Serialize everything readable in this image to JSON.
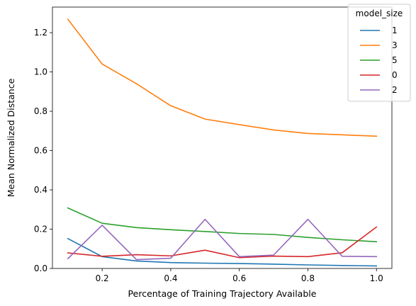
{
  "chart_data": {
    "type": "line",
    "xlabel": "Percentage of Training Trajectory Available",
    "ylabel": "Mean Normalized Distance",
    "xlim": [
      0.055,
      1.045
    ],
    "ylim": [
      0.0,
      1.33
    ],
    "x_ticks": [
      0.2,
      0.4,
      0.6,
      0.8,
      1.0
    ],
    "x_tick_labels": [
      "0.2",
      "0.4",
      "0.6",
      "0.8",
      "1.0"
    ],
    "y_ticks": [
      0.0,
      0.2,
      0.4,
      0.6,
      0.8,
      1.0,
      1.2
    ],
    "y_tick_labels": [
      "0.0",
      "0.2",
      "0.4",
      "0.6",
      "0.8",
      "1.0",
      "1.2"
    ],
    "grid": false,
    "legend": {
      "title": "model_size",
      "placement": "top-right"
    },
    "x": [
      0.1,
      0.2,
      0.3,
      0.4,
      0.5,
      0.6,
      0.7,
      0.8,
      0.9,
      1.0
    ],
    "series": [
      {
        "name": "1",
        "color": "#1f77b4",
        "values": [
          0.152,
          0.06,
          0.038,
          0.03,
          0.027,
          0.025,
          0.022,
          0.018,
          0.015,
          0.013
        ]
      },
      {
        "name": "3",
        "color": "#ff7f0e",
        "values": [
          1.268,
          1.04,
          0.94,
          0.828,
          0.76,
          0.732,
          0.705,
          0.687,
          0.68,
          0.673
        ]
      },
      {
        "name": "5",
        "color": "#2ca02c",
        "values": [
          0.308,
          0.23,
          0.208,
          0.197,
          0.188,
          0.178,
          0.173,
          0.158,
          0.146,
          0.136
        ]
      },
      {
        "name": "0",
        "color": "#d62728",
        "values": [
          0.079,
          0.062,
          0.07,
          0.064,
          0.093,
          0.055,
          0.063,
          0.06,
          0.08,
          0.211
        ]
      },
      {
        "name": "2",
        "color": "#9467bd",
        "values": [
          0.05,
          0.22,
          0.045,
          0.052,
          0.25,
          0.06,
          0.068,
          0.25,
          0.062,
          0.06
        ]
      }
    ]
  }
}
